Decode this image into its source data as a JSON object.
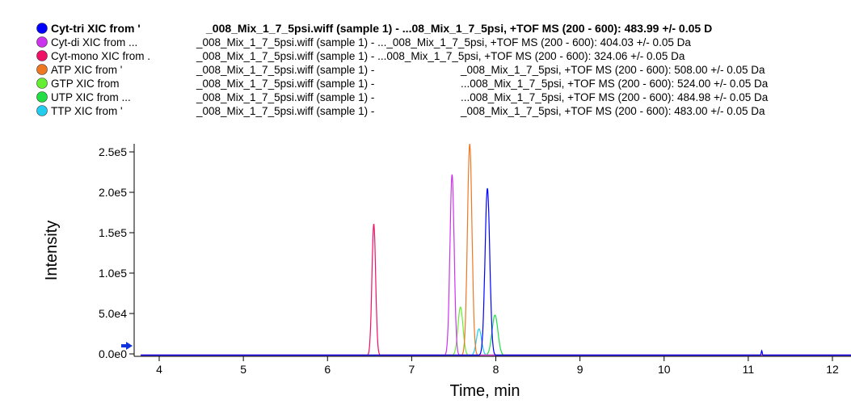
{
  "chart_data": {
    "type": "line",
    "xlabel": "Time, min",
    "ylabel": "Intensity",
    "xlim": [
      3.75,
      12.3
    ],
    "ylim": [
      0,
      265000
    ],
    "x_ticks": [
      4,
      5,
      6,
      7,
      8,
      9,
      10,
      11,
      12
    ],
    "y_ticks": [
      {
        "value": 0,
        "label": "0.0e0"
      },
      {
        "value": 50000,
        "label": "5.0e4"
      },
      {
        "value": 100000,
        "label": "1.0e5"
      },
      {
        "value": 150000,
        "label": "1.5e5"
      },
      {
        "value": 200000,
        "label": "2.0e5"
      },
      {
        "value": 250000,
        "label": "2.5e5"
      }
    ],
    "grid": false,
    "legend_placement": "top",
    "series": [
      {
        "name": "Cyt-tri",
        "legend_prefix": "Cyt-tri XIC from '",
        "legend_mid": "_008_Mix_1_7_5psi.wiff (sample 1) - ...08_Mix_1_7_5psi, +TOF MS (200 - 600): 483.99 +/- 0.05 D",
        "bold": true,
        "color": "#0000ff",
        "baseline_color": "#0000ff",
        "peaks": [
          {
            "center": 7.9,
            "height": 207000,
            "sigma": 0.028
          },
          {
            "center": 11.16,
            "height": 6000,
            "sigma": 0.006
          }
        ]
      },
      {
        "name": "Cyt-di",
        "legend_prefix": "Cyt-di XIC from ...",
        "legend_mid": "_008_Mix_1_7_5psi.wiff (sample 1) -  ..._008_Mix_1_7_5psi, +TOF MS (200 - 600): 404.03 +/- 0.05 Da",
        "bold": false,
        "color": "#cc33ee",
        "peaks": [
          {
            "center": 7.48,
            "height": 224000,
            "sigma": 0.025
          }
        ]
      },
      {
        "name": "Cyt-mono",
        "legend_prefix": "Cyt-mono XIC from .",
        "legend_mid": "_008_Mix_1_7_5psi.wiff (sample 1) - ...008_Mix_1_7_5psi, +TOF MS (200 - 600): 324.06 +/- 0.05 Da",
        "bold": false,
        "color": "#ee1166",
        "peaks": [
          {
            "center": 6.55,
            "height": 163000,
            "sigma": 0.022
          }
        ]
      },
      {
        "name": "ATP",
        "legend_prefix": "ATP XIC from '",
        "legend_mid": "_008_Mix_1_7_5psi.wiff (sample 1) -",
        "legend_right": "_008_Mix_1_7_5psi, +TOF MS (200 - 600): 508.00 +/- 0.05 Da",
        "bold": false,
        "color": "#ee7722",
        "peaks": [
          {
            "center": 7.69,
            "height": 262000,
            "sigma": 0.027
          }
        ]
      },
      {
        "name": "GTP",
        "legend_prefix": "GTP XIC from",
        "legend_mid": "_008_Mix_1_7_5psi.wiff (sample 1) -",
        "legend_right": "...008_Mix_1_7_5psi, +TOF MS (200 - 600): 524.00 +/- 0.05 Da",
        "bold": false,
        "color": "#66ee33",
        "peaks": [
          {
            "center": 7.58,
            "height": 60000,
            "sigma": 0.03
          }
        ]
      },
      {
        "name": "UTP",
        "legend_prefix": "UTP XIC from ...",
        "legend_mid": "_008_Mix_1_7_5psi.wiff (sample 1) -",
        "legend_right": "...008_Mix_1_7_5psi, +TOF MS (200 - 600): 484.98 +/- 0.05 Da",
        "bold": false,
        "color": "#22dd44",
        "peaks": [
          {
            "center": 7.99,
            "height": 50000,
            "sigma": 0.035
          }
        ]
      },
      {
        "name": "TTP",
        "legend_prefix": "TTP XIC from '",
        "legend_mid": "_008_Mix_1_7_5psi.wiff (sample 1) -",
        "legend_right": "_008_Mix_1_7_5psi, +TOF MS (200 - 600): 483.00 +/- 0.05 Da",
        "bold": false,
        "color": "#22ccee",
        "peaks": [
          {
            "center": 7.8,
            "height": 33000,
            "sigma": 0.03
          }
        ]
      }
    ]
  },
  "colors": {
    "axis": "#000000",
    "marker_arrow": "#1133dd"
  }
}
